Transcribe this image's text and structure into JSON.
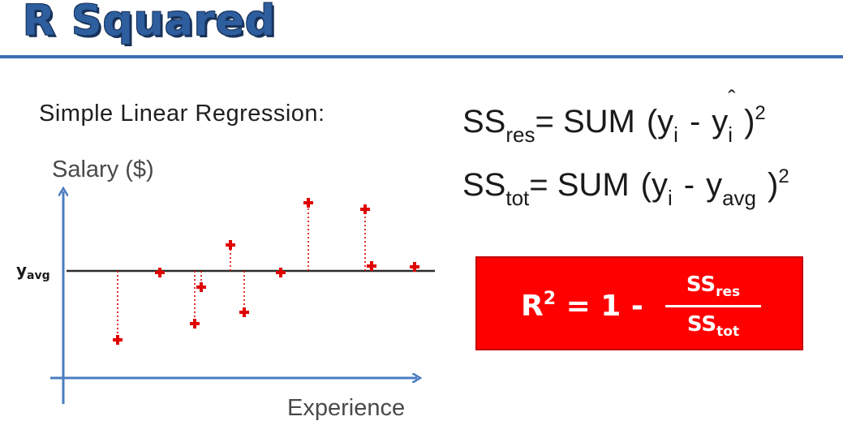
{
  "title": "R Squared",
  "subtitle": "Simple Linear Regression:",
  "graph": {
    "y_axis_label": "Salary ($)",
    "x_axis_label": "Experience",
    "avg_line_label": "yavg"
  },
  "formulas": {
    "ss_res": {
      "lhs": "SS",
      "lhs_sub": "res",
      "eq": "= SUM",
      "open": "(y",
      "i1": "i",
      "minus": "-",
      "y2": "y",
      "i2": "i",
      "hat": "ˆ",
      "close": ")",
      "exp": "2"
    },
    "ss_tot": {
      "lhs": "SS",
      "lhs_sub": "tot",
      "eq": "= SUM",
      "open": "(y",
      "i1": "i",
      "minus": "-",
      "y2": "y",
      "sub2": "avg",
      "close": ")",
      "exp": "2"
    }
  },
  "r2": {
    "lhs": "R",
    "lhs_exp": "2",
    "rhs": "= 1 -",
    "num": "SS",
    "num_sub": "res",
    "den": "SS",
    "den_sub": "tot"
  },
  "colors": {
    "title": "#2e5e9e",
    "axis": "#4a7dc0",
    "points": "#e00000",
    "box": "#ff0000"
  }
}
